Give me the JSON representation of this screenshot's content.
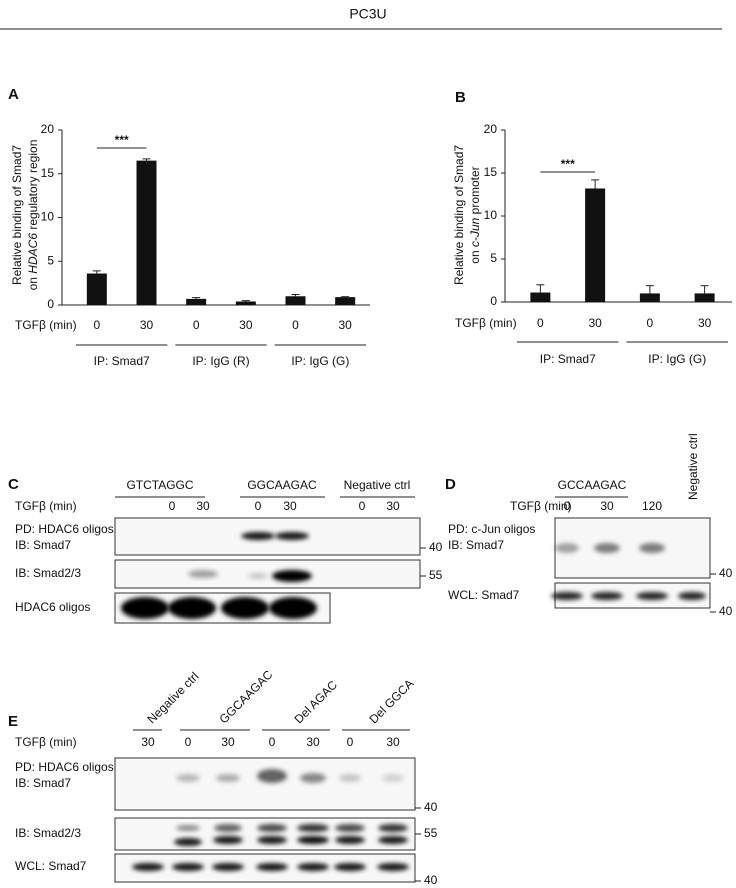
{
  "header": {
    "title": "PC3U"
  },
  "chart_data": [
    {
      "type": "bar",
      "panel": "A",
      "ylabel": {
        "line1": "Relative binding of Smad7",
        "pre": "on ",
        "italic": "HDAC6",
        "post": " regulatory region"
      },
      "xlabel": "TGFβ (min)",
      "categories": [
        "0",
        "30",
        "0",
        "30",
        "0",
        "30"
      ],
      "groups": [
        "IP: Smad7",
        "IP: IgG (R)",
        "IP: IgG (G)"
      ],
      "values": [
        3.6,
        16.5,
        0.7,
        0.4,
        1.0,
        0.9
      ],
      "errors": [
        0.3,
        0.2,
        0.15,
        0.1,
        0.2,
        0.05
      ],
      "color": "#111111",
      "significance": "***",
      "ylim": [
        0,
        20
      ],
      "yticks": [
        0,
        5,
        10,
        15,
        20
      ]
    },
    {
      "type": "bar",
      "panel": "B",
      "ylabel": {
        "line1": "Relative binding of Smad7",
        "pre": "on ",
        "italic": "c-Jun",
        "post": " promoter"
      },
      "xlabel": "TGFβ (min)",
      "categories": [
        "0",
        "30",
        "0",
        "30"
      ],
      "groups": [
        "IP: Smad7",
        "IP: IgG (G)"
      ],
      "values": [
        1.1,
        13.2,
        1.0,
        1.0
      ],
      "errors": [
        0.9,
        1.0,
        0.9,
        0.9
      ],
      "color": "#111111",
      "significance": "***",
      "ylim": [
        0,
        20
      ],
      "yticks": [
        0,
        5,
        10,
        15,
        20
      ]
    }
  ],
  "panels": [
    {
      "letter": "C",
      "headers": [
        "GTCTAGGC",
        "GGCAAGAC",
        "Negative ctrl"
      ],
      "treatment": "TGFβ (min)",
      "times": [
        "0",
        "30",
        "0",
        "30",
        "0",
        "30"
      ],
      "rows": [
        [
          "PD: HDAC6 oligos",
          "IB: Smad7"
        ],
        [
          "IB: Smad2/3"
        ],
        [
          "HDAC6 oligos"
        ]
      ],
      "markers": [
        "40",
        "55"
      ]
    },
    {
      "letter": "D",
      "headers": [
        "GCCAAGAC",
        "Negative ctrl"
      ],
      "treatment": "TGFβ (min)",
      "times": [
        "0",
        "30",
        "120"
      ],
      "rows": [
        [
          "PD: c-Jun oligos",
          "IB: Smad7"
        ],
        [
          "WCL: Smad7"
        ]
      ],
      "markers": [
        "40",
        "40"
      ]
    },
    {
      "letter": "E",
      "headers": [
        "Negative ctrl",
        "GGCAAGAC",
        "Del AGAC",
        "Del GGCA"
      ],
      "treatment": "TGFβ (min)",
      "times": [
        "30",
        "0",
        "30",
        "0",
        "30",
        "0",
        "30"
      ],
      "rows": [
        [
          "PD: HDAC6 oligos",
          "IB: Smad7"
        ],
        [
          "IB: Smad2/3"
        ],
        [
          "WCL: Smad7"
        ]
      ],
      "markers": [
        "40",
        "55",
        "40"
      ]
    }
  ]
}
